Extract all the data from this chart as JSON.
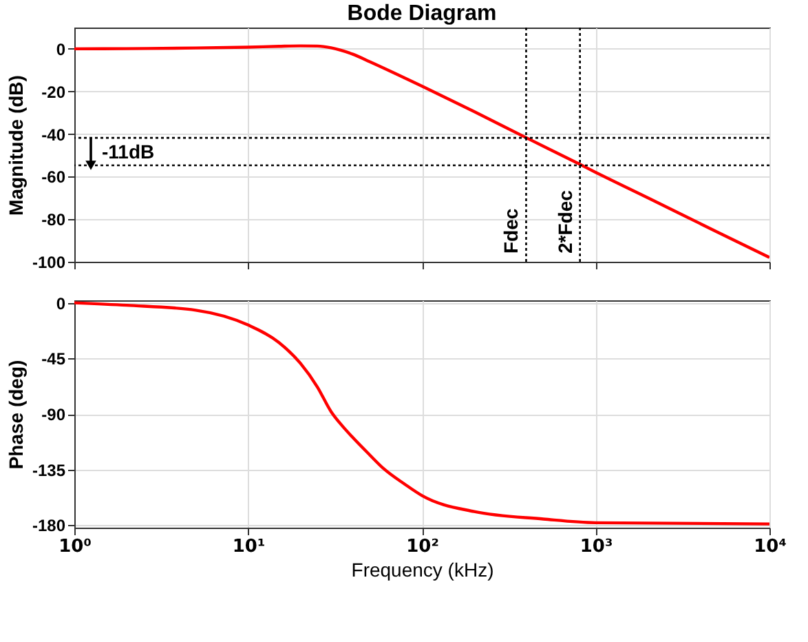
{
  "chart_data": [
    {
      "type": "line",
      "title": "Bode Diagram",
      "ylabel": "Magnitude (dB)",
      "x": [
        1,
        2,
        5,
        10,
        15,
        20,
        25,
        30,
        40,
        50,
        70,
        100,
        200,
        400,
        800,
        1000,
        2000,
        5000,
        10000
      ],
      "series": [
        {
          "color": "#ff0000",
          "values": [
            0,
            0.1,
            0.4,
            0.8,
            1.2,
            1.4,
            1.3,
            0.5,
            -2.5,
            -6,
            -11.5,
            -17.5,
            -29.5,
            -41.8,
            -54,
            -58,
            -70,
            -86,
            -98
          ]
        }
      ],
      "xlim": [
        1,
        10000
      ],
      "ylim": [
        -100,
        10
      ],
      "xticks": [
        {
          "value": 1,
          "label": null
        },
        {
          "value": 10,
          "label": null
        },
        {
          "value": 100,
          "label": null
        },
        {
          "value": 1000,
          "label": null
        },
        {
          "value": 10000,
          "label": null
        }
      ],
      "yticks": [
        0,
        -20,
        -40,
        -60,
        -80,
        -100
      ],
      "log": "x",
      "grid": true,
      "tick_labels": "y",
      "line_style": "solid",
      "ref_lines": [
        {
          "axis": "x",
          "value": 398,
          "label": "Fdec",
          "color": "#000000",
          "line_style": "dotted"
        },
        {
          "axis": "x",
          "value": 812,
          "label": "2*Fdec",
          "color": "#000000",
          "line_style": "dotted"
        },
        {
          "axis": "y",
          "value": -41.8,
          "color": "#000000",
          "line_style": "dotted"
        },
        {
          "axis": "y",
          "value": -54.7,
          "color": "#000000",
          "line_style": "dotted"
        }
      ],
      "annotations": [
        "-11dB"
      ]
    },
    {
      "type": "line",
      "xlabel": "Frequency  (kHz)",
      "ylabel": "Phase (deg)",
      "x": [
        1,
        2,
        5,
        10,
        15,
        20,
        25,
        30,
        35,
        40,
        50,
        60,
        80,
        100,
        200,
        500,
        1000,
        10000
      ],
      "series": [
        {
          "color": "#ff0000",
          "values": [
            0,
            -2,
            -6,
            -18,
            -32,
            -49,
            -68,
            -88,
            -100,
            -109,
            -123,
            -134,
            -147,
            -156,
            -169,
            -175,
            -178,
            -179
          ]
        }
      ],
      "xlim": [
        1,
        10000
      ],
      "ylim": [
        -182,
        2
      ],
      "xticks": [
        {
          "value": 1,
          "label": "10⁰"
        },
        {
          "value": 10,
          "label": "10¹"
        },
        {
          "value": 100,
          "label": "10²"
        },
        {
          "value": 1000,
          "label": "10³"
        },
        {
          "value": 10000,
          "label": "10⁴"
        }
      ],
      "yticks": [
        0,
        -45,
        -90,
        -135,
        -180
      ],
      "log": "x",
      "grid": true,
      "line_style": "solid"
    }
  ]
}
